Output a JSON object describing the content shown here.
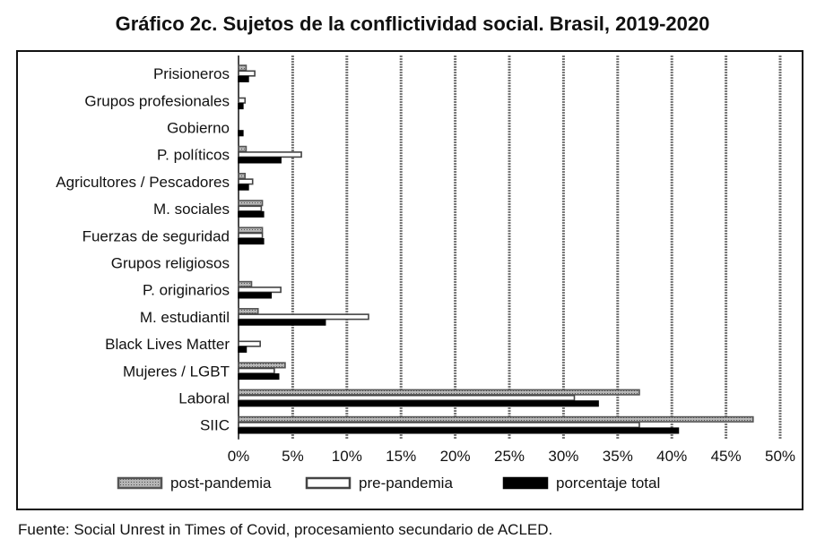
{
  "title": "Gráfico 2c. Sujetos de la conflictividad social. Brasil, 2019-2020",
  "source": "Fuente: Social Unrest in Times of Covid, procesamiento secundario de ACLED.",
  "colors": {
    "post": "#a0a0a0",
    "pre": "#ffffff",
    "total": "#000000",
    "grid": "#777777"
  },
  "chart_data": {
    "type": "bar",
    "orientation": "horizontal",
    "title": "Gráfico 2c. Sujetos de la conflictividad social. Brasil, 2019-2020",
    "categories": [
      "Prisioneros",
      "Grupos profesionales",
      "Gobierno",
      "P. políticos",
      "Agricultores / Pescadores",
      "M. sociales",
      "Fuerzas de seguridad",
      "Grupos religiosos",
      "P. originarios",
      "M. estudiantil",
      "Black Lives Matter",
      "Mujeres / LGBT",
      "Laboral",
      "SIIC"
    ],
    "series": [
      {
        "name": "post-pandemia",
        "values": [
          0.7,
          0.0,
          0.0,
          0.7,
          0.6,
          2.2,
          2.2,
          0.0,
          1.2,
          1.8,
          0.0,
          4.3,
          37.0,
          47.5
        ]
      },
      {
        "name": "pre-pandemia",
        "values": [
          1.5,
          0.6,
          0.0,
          5.8,
          1.3,
          2.1,
          2.2,
          0.0,
          3.9,
          12.0,
          2.0,
          3.3,
          31.0,
          37.0
        ]
      },
      {
        "name": "porcentaje total",
        "values": [
          0.9,
          0.4,
          0.4,
          3.9,
          0.9,
          2.3,
          2.3,
          0.0,
          3.0,
          8.0,
          0.7,
          3.7,
          33.2,
          40.6
        ]
      }
    ],
    "xlim": [
      0,
      50
    ],
    "xticks": [
      "0%",
      "5%",
      "10%",
      "15%",
      "20%",
      "25%",
      "30%",
      "35%",
      "40%",
      "45%",
      "50%"
    ],
    "grid": true,
    "legend_position": "bottom"
  }
}
